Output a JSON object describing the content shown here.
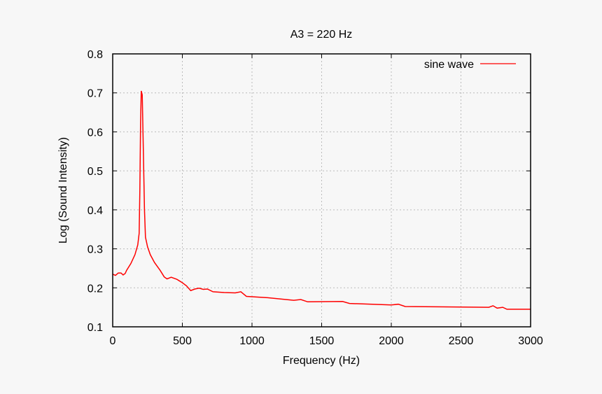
{
  "chart_data": {
    "type": "line",
    "title": "A3 = 220 Hz",
    "xlabel": "Frequency (Hz)",
    "ylabel": "Log (Sound Intensity)",
    "xlim": [
      0,
      3000
    ],
    "ylim": [
      0.1,
      0.8
    ],
    "xticks": [
      "0",
      "500",
      "1000",
      "1500",
      "2000",
      "2500",
      "3000"
    ],
    "yticks": [
      "0.1",
      "0.2",
      "0.3",
      "0.4",
      "0.5",
      "0.6",
      "0.7",
      "0.8"
    ],
    "grid": true,
    "legend": "top-right",
    "series": [
      {
        "name": "sine wave",
        "color": "#ff0000",
        "x": [
          0,
          20,
          40,
          60,
          75,
          90,
          100,
          130,
          160,
          180,
          190,
          195,
          200,
          205,
          212,
          220,
          228,
          235,
          250,
          270,
          300,
          340,
          370,
          390,
          420,
          460,
          500,
          530,
          560,
          590,
          620,
          650,
          680,
          720,
          800,
          880,
          920,
          960,
          1100,
          1300,
          1350,
          1400,
          1650,
          1700,
          2000,
          2050,
          2100,
          2700,
          2730,
          2760,
          2800,
          2830,
          3000
        ],
        "y": [
          0.235,
          0.232,
          0.238,
          0.238,
          0.233,
          0.237,
          0.245,
          0.262,
          0.285,
          0.31,
          0.34,
          0.45,
          0.62,
          0.705,
          0.695,
          0.55,
          0.4,
          0.33,
          0.305,
          0.285,
          0.265,
          0.245,
          0.228,
          0.223,
          0.227,
          0.222,
          0.213,
          0.205,
          0.193,
          0.197,
          0.199,
          0.196,
          0.197,
          0.19,
          0.188,
          0.187,
          0.19,
          0.178,
          0.175,
          0.168,
          0.17,
          0.164,
          0.165,
          0.16,
          0.156,
          0.158,
          0.152,
          0.15,
          0.154,
          0.148,
          0.15,
          0.145,
          0.145
        ]
      }
    ]
  }
}
